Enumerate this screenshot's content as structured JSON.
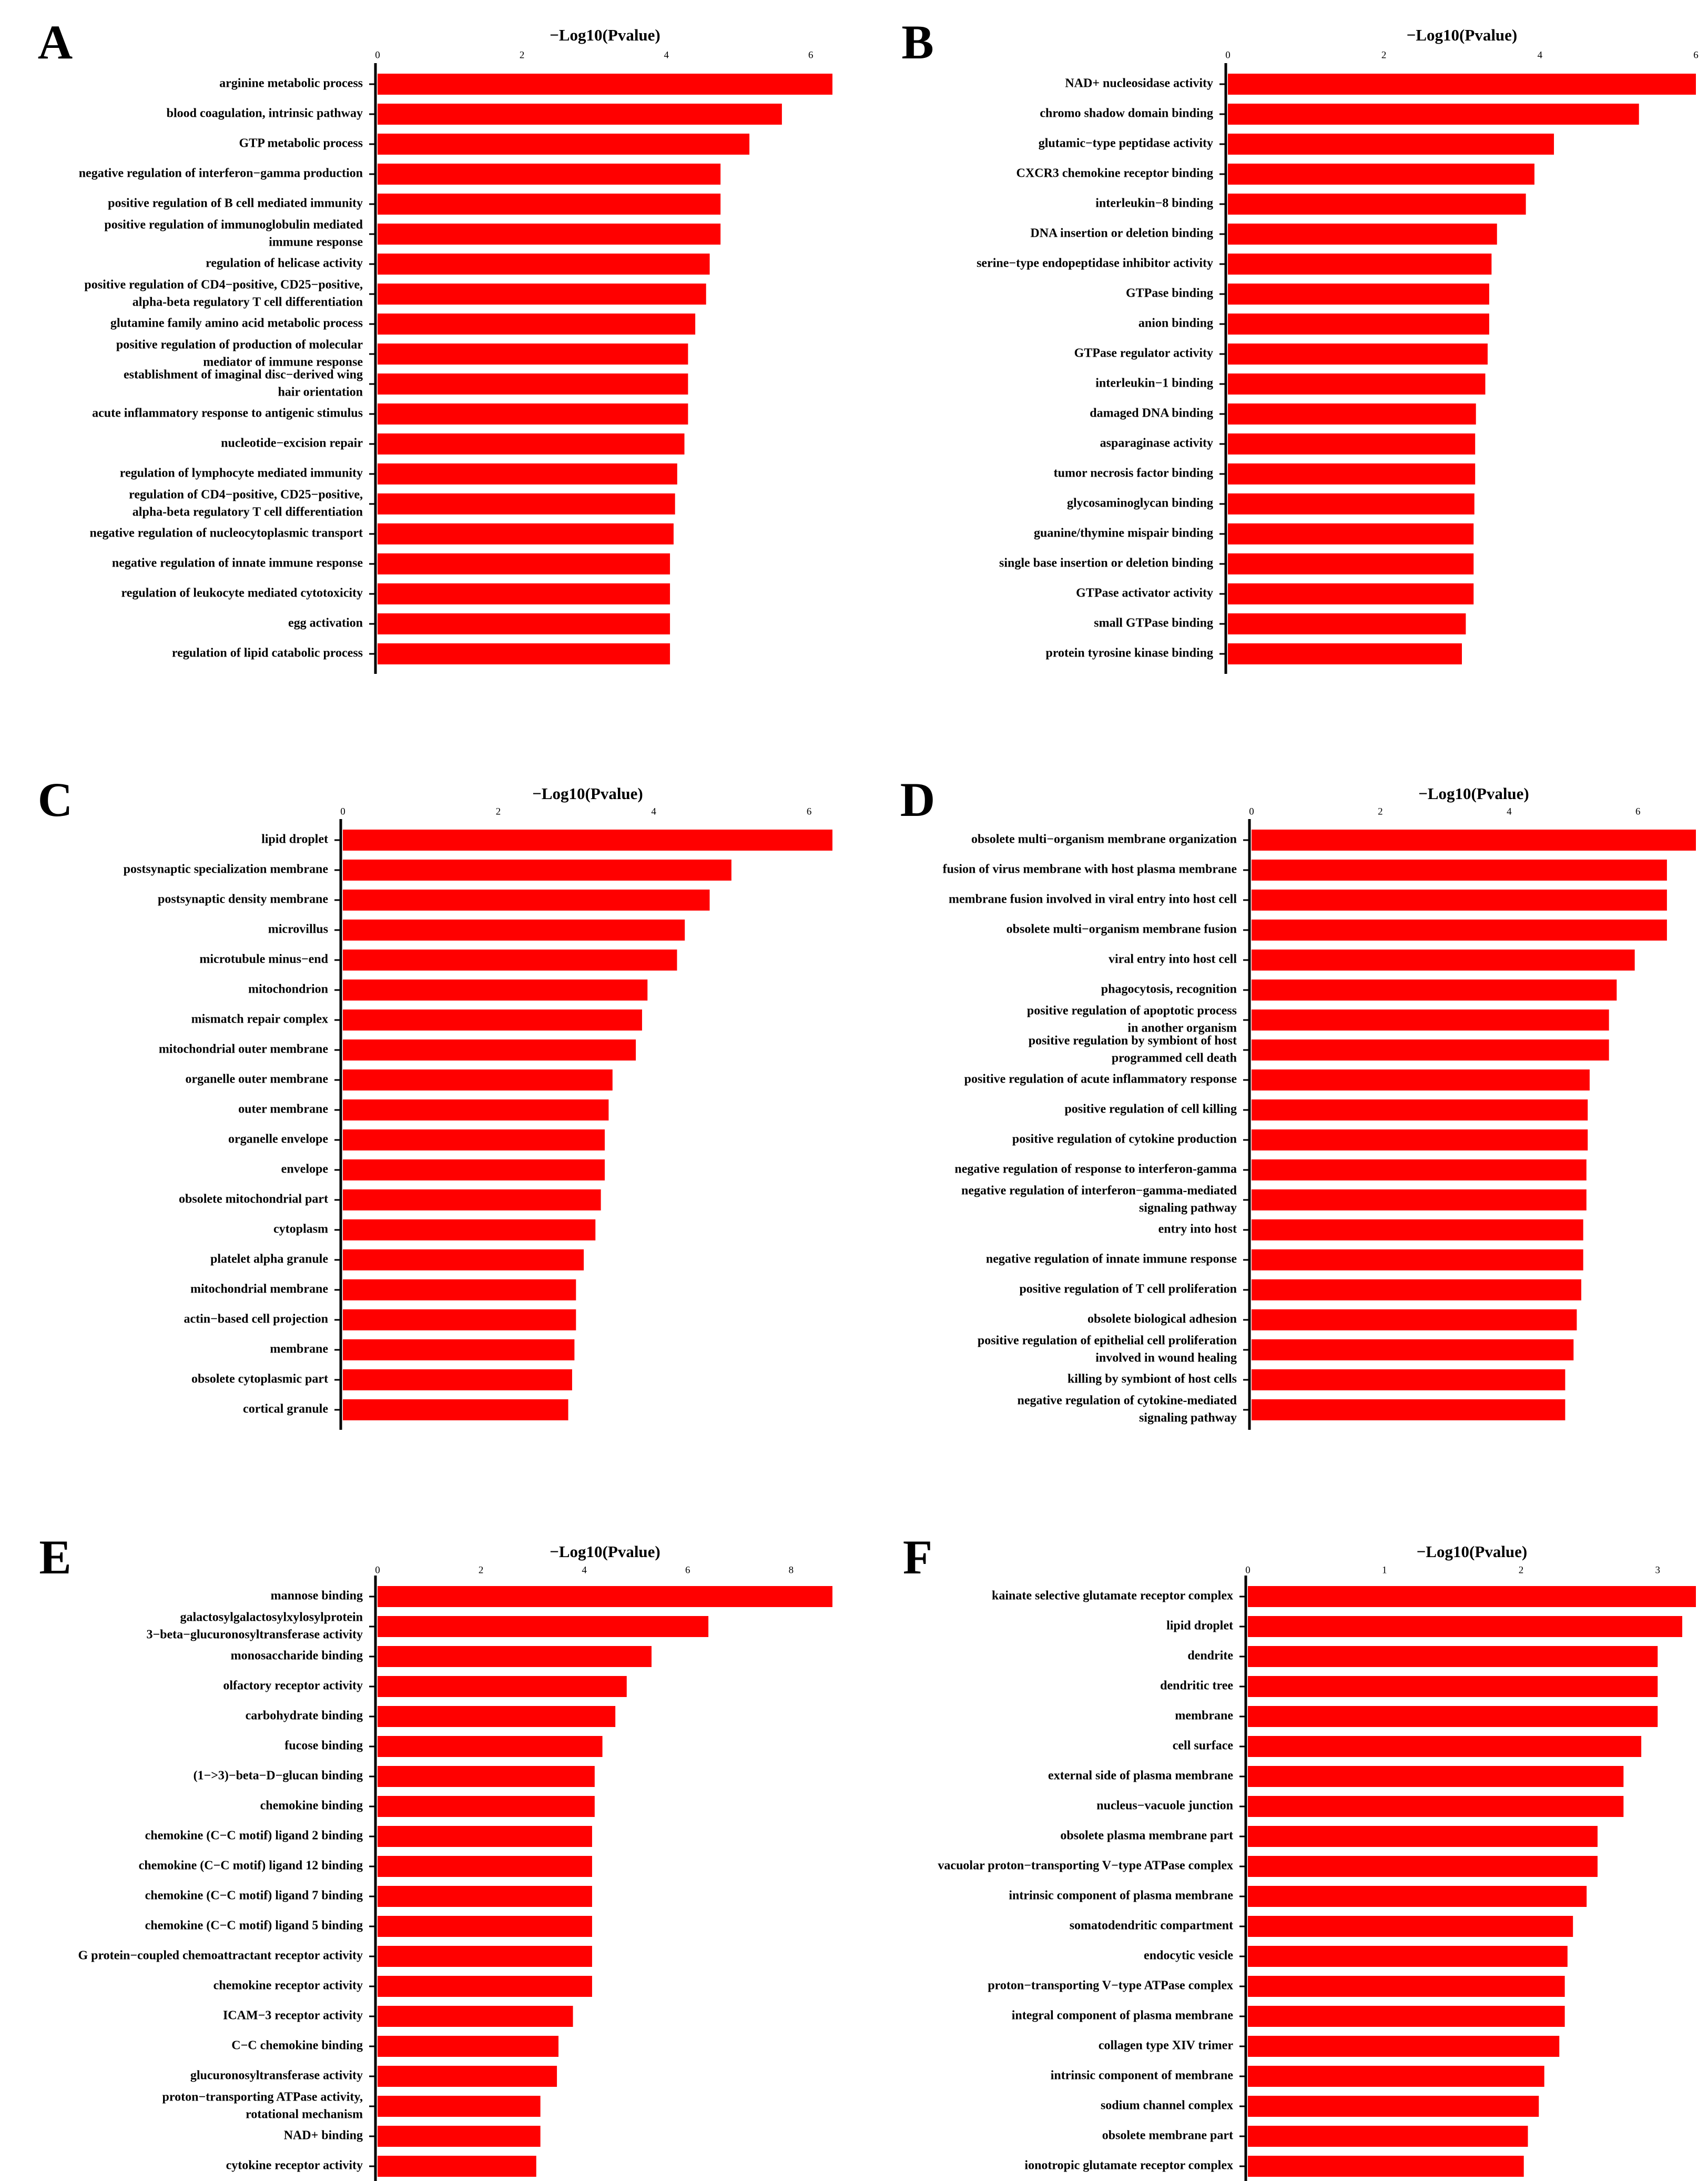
{
  "colors": {
    "bar": "#ff0000",
    "axis": "#000000"
  },
  "chart_data": [
    {
      "type": "bar",
      "panel": "A",
      "title": "",
      "xlabel": "−Log10(Pvalue)",
      "ylabel": "",
      "orientation": "horizontal",
      "xlim": [
        0,
        6.3
      ],
      "ticks": [
        0,
        2,
        4,
        6
      ],
      "categories": [
        "arginine metabolic process",
        "blood coagulation, intrinsic pathway",
        "GTP metabolic process",
        "negative regulation of interferon−gamma production",
        "positive regulation of B cell mediated immunity",
        "positive regulation of immunoglobulin mediated\nimmune response",
        "regulation of helicase activity",
        "positive regulation of CD4−positive, CD25−positive,\nalpha-beta regulatory T cell differentiation",
        "glutamine family amino acid metabolic process",
        "positive regulation of production of molecular\nmediator of immune response",
        "establishment of imaginal disc−derived wing\nhair orientation",
        "acute inflammatory response to antigenic stimulus",
        "nucleotide−excision repair",
        "regulation of lymphocyte mediated immunity",
        "regulation of CD4−positive, CD25−positive,\nalpha-beta regulatory T cell differentiation",
        "negative regulation of nucleocytoplasmic transport",
        "negative regulation of innate immune response",
        "regulation of leukocyte mediated cytotoxicity",
        "egg activation",
        "regulation of lipid catabolic process"
      ],
      "values": [
        6.3,
        5.6,
        5.15,
        4.75,
        4.75,
        4.75,
        4.6,
        4.55,
        4.4,
        4.3,
        4.3,
        4.3,
        4.25,
        4.15,
        4.12,
        4.1,
        4.05,
        4.05,
        4.05,
        4.05
      ]
    },
    {
      "type": "bar",
      "panel": "B",
      "title": "",
      "xlabel": "−Log10(Pvalue)",
      "ylabel": "",
      "orientation": "horizontal",
      "xlim": [
        0,
        6.0
      ],
      "ticks": [
        0,
        2,
        4,
        6
      ],
      "categories": [
        "NAD+ nucleosidase activity",
        "chromo shadow domain binding",
        "glutamic−type peptidase activity",
        "CXCR3 chemokine receptor binding",
        "interleukin−8 binding",
        "DNA insertion or deletion binding",
        "serine−type endopeptidase inhibitor activity",
        "GTPase binding",
        "anion binding",
        "GTPase regulator activity",
        "interleukin−1 binding",
        "damaged DNA binding",
        "asparaginase activity",
        "tumor necrosis factor binding",
        "glycosaminoglycan binding",
        "guanine/thymine mispair binding",
        "single base insertion or deletion binding",
        "GTPase activator activity",
        "small GTPase binding",
        "protein tyrosine kinase binding"
      ],
      "values": [
        6.0,
        5.27,
        4.18,
        3.93,
        3.82,
        3.45,
        3.38,
        3.35,
        3.35,
        3.33,
        3.3,
        3.18,
        3.17,
        3.17,
        3.16,
        3.15,
        3.15,
        3.15,
        3.05,
        3.0
      ]
    },
    {
      "type": "bar",
      "panel": "C",
      "title": "",
      "xlabel": "−Log10(Pvalue)",
      "ylabel": "",
      "orientation": "horizontal",
      "xlim": [
        0,
        6.3
      ],
      "ticks": [
        0,
        2,
        4,
        6
      ],
      "categories": [
        "lipid droplet",
        "postsynaptic specialization membrane",
        "postsynaptic density membrane",
        "microvillus",
        "microtubule minus−end",
        "mitochondrion",
        "mismatch repair complex",
        "mitochondrial outer membrane",
        "organelle outer membrane",
        "outer membrane",
        "organelle envelope",
        "envelope",
        "obsolete mitochondrial part",
        "cytoplasm",
        "platelet alpha granule",
        "mitochondrial membrane",
        "actin−based cell projection",
        "membrane",
        "obsolete cytoplasmic part",
        "cortical granule"
      ],
      "values": [
        6.3,
        5.0,
        4.72,
        4.4,
        4.3,
        3.92,
        3.85,
        3.77,
        3.47,
        3.42,
        3.37,
        3.37,
        3.32,
        3.25,
        3.1,
        3.0,
        3.0,
        2.98,
        2.95,
        2.9
      ]
    },
    {
      "type": "bar",
      "panel": "D",
      "title": "",
      "xlabel": "−Log10(Pvalue)",
      "ylabel": "",
      "orientation": "horizontal",
      "xlim": [
        0,
        6.9
      ],
      "ticks": [
        0,
        2,
        4,
        6
      ],
      "categories": [
        "obsolete multi−organism membrane organization",
        "fusion of virus membrane with host plasma membrane",
        "membrane fusion involved in viral entry into host cell",
        "obsolete multi−organism membrane fusion",
        "viral entry into host cell",
        "phagocytosis, recognition",
        "positive regulation of apoptotic process\nin another organism",
        "positive regulation by symbiont of host\nprogrammed cell death",
        "positive regulation of acute inflammatory response",
        "positive regulation of cell killing",
        "positive regulation of cytokine production",
        "negative regulation of response to interferon-gamma",
        "negative regulation of interferon−gamma-mediated\nsignaling pathway",
        "entry into host",
        "negative regulation of innate immune response",
        "positive regulation of T cell proliferation",
        "obsolete biological adhesion",
        "positive regulation of epithelial cell proliferation\ninvolved in wound healing",
        "killing by symbiont of host cells",
        "negative regulation of cytokine-mediated\nsignaling pathway"
      ],
      "values": [
        6.9,
        6.45,
        6.45,
        6.45,
        5.95,
        5.67,
        5.55,
        5.55,
        5.25,
        5.22,
        5.22,
        5.2,
        5.2,
        5.15,
        5.15,
        5.12,
        5.05,
        5.0,
        4.87,
        4.87
      ]
    },
    {
      "type": "bar",
      "panel": "E",
      "title": "",
      "xlabel": "−Log10(Pvalue)",
      "ylabel": "",
      "orientation": "horizontal",
      "xlim": [
        0,
        8.8
      ],
      "ticks": [
        0,
        2,
        4,
        6,
        8
      ],
      "categories": [
        "mannose binding",
        "galactosylgalactosylxylosylprotein\n3−beta−glucuronosyltransferase activity",
        "monosaccharide binding",
        "olfactory receptor activity",
        "carbohydrate binding",
        "fucose binding",
        "(1−>3)−beta−D−glucan binding",
        "chemokine binding",
        "chemokine (C−C motif) ligand 2 binding",
        "chemokine (C−C motif) ligand 12 binding",
        "chemokine (C−C motif) ligand 7 binding",
        "chemokine (C−C motif) ligand 5 binding",
        "G protein−coupled chemoattractant receptor activity",
        "chemokine receptor activity",
        "ICAM−3 receptor activity",
        "C−C chemokine binding",
        "glucuronosyltransferase activity",
        "proton−transporting ATPase activity,\nrotational mechanism",
        "NAD+ binding",
        "cytokine receptor activity"
      ],
      "values": [
        8.8,
        6.4,
        5.3,
        4.82,
        4.6,
        4.35,
        4.2,
        4.2,
        4.15,
        4.15,
        4.15,
        4.15,
        4.15,
        4.15,
        3.78,
        3.5,
        3.47,
        3.15,
        3.15,
        3.07
      ]
    },
    {
      "type": "bar",
      "panel": "F",
      "title": "",
      "xlabel": "−Log10(Pvalue)",
      "ylabel": "",
      "orientation": "horizontal",
      "xlim": [
        0,
        3.28
      ],
      "ticks": [
        0,
        1,
        2,
        3
      ],
      "categories": [
        "kainate selective glutamate receptor complex",
        "lipid droplet",
        "dendrite",
        "dendritic tree",
        "membrane",
        "cell surface",
        "external side of plasma membrane",
        "nucleus−vacuole junction",
        "obsolete plasma membrane part",
        "vacuolar proton−transporting V−type ATPase complex",
        "intrinsic component of plasma membrane",
        "somatodendritic compartment",
        "endocytic vesicle",
        "proton−transporting V−type ATPase complex",
        "integral component of plasma membrane",
        "collagen type XIV trimer",
        "intrinsic component of membrane",
        "sodium channel complex",
        "obsolete membrane part",
        "ionotropic glutamate receptor complex"
      ],
      "values": [
        3.28,
        3.18,
        3.0,
        3.0,
        3.0,
        2.88,
        2.75,
        2.75,
        2.56,
        2.56,
        2.48,
        2.38,
        2.34,
        2.32,
        2.32,
        2.28,
        2.17,
        2.13,
        2.05,
        2.02
      ]
    }
  ]
}
